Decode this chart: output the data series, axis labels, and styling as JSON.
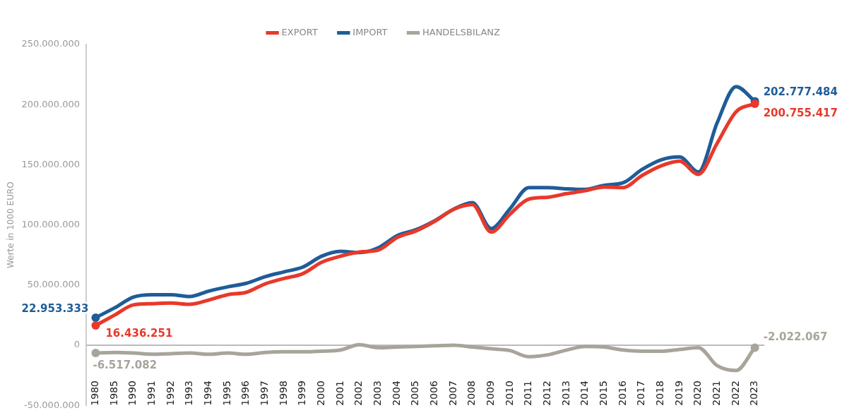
{
  "chart_data": {
    "type": "line",
    "ylabel": "Werte in 1000 EURO",
    "categories": [
      "1980",
      "1985",
      "1990",
      "1991",
      "1992",
      "1993",
      "1994",
      "1995",
      "1996",
      "1997",
      "1998",
      "1999",
      "2000",
      "2001",
      "2002",
      "2003",
      "2004",
      "2005",
      "2006",
      "2007",
      "2008",
      "2009",
      "2010",
      "2011",
      "2012",
      "2013",
      "2014",
      "2015",
      "2016",
      "2017",
      "2018",
      "2019",
      "2020",
      "2021",
      "2022",
      "2023"
    ],
    "series": [
      {
        "name": "EXPORT",
        "color": "#e8392a",
        "values": [
          16436251,
          25000000,
          33500000,
          34500000,
          35000000,
          34000000,
          37500000,
          42000000,
          44000000,
          51000000,
          55500000,
          59500000,
          69000000,
          74000000,
          77500000,
          79000000,
          89500000,
          95000000,
          103000000,
          113000000,
          117000000,
          94000000,
          109000000,
          121500000,
          123000000,
          126000000,
          128500000,
          131500000,
          131000000,
          141000000,
          149000000,
          153000000,
          142000000,
          168000000,
          194000000,
          200755417
        ],
        "value_labels": [
          "16.436.251",
          null,
          null,
          null,
          null,
          null,
          null,
          null,
          null,
          null,
          null,
          null,
          null,
          null,
          null,
          null,
          null,
          null,
          null,
          null,
          null,
          null,
          null,
          null,
          null,
          null,
          null,
          null,
          null,
          null,
          null,
          null,
          null,
          null,
          null,
          "200.755.417"
        ]
      },
      {
        "name": "IMPORT",
        "color": "#1f5c99",
        "values": [
          22953333,
          31000000,
          40000000,
          42000000,
          42000000,
          40500000,
          45000000,
          48500000,
          51500000,
          57000000,
          61000000,
          65000000,
          74000000,
          78000000,
          77000000,
          81000000,
          91000000,
          96000000,
          103500000,
          113000000,
          118500000,
          97000000,
          113500000,
          131000000,
          131000000,
          130000000,
          129500000,
          133000000,
          135000000,
          146000000,
          154000000,
          156500000,
          144000000,
          185000000,
          215000000,
          202777484
        ],
        "value_labels": [
          "22.953.333",
          null,
          null,
          null,
          null,
          null,
          null,
          null,
          null,
          null,
          null,
          null,
          null,
          null,
          null,
          null,
          null,
          null,
          null,
          null,
          null,
          null,
          null,
          null,
          null,
          null,
          null,
          null,
          null,
          null,
          null,
          null,
          null,
          null,
          null,
          "202.777.484"
        ]
      },
      {
        "name": "HANDELSBILANZ",
        "color": "#a8a49a",
        "values": [
          -6517082,
          -6000000,
          -6500000,
          -7500000,
          -7000000,
          -6500000,
          -7500000,
          -6500000,
          -7500000,
          -6000000,
          -5500000,
          -5500000,
          -5000000,
          -4000000,
          500000,
          -2000000,
          -1500000,
          -1000000,
          -500000,
          0,
          -1500000,
          -3000000,
          -4500000,
          -9500000,
          -8000000,
          -4000000,
          -1000000,
          -1500000,
          -4000000,
          -5000000,
          -5000000,
          -3500000,
          -2000000,
          -17000000,
          -21000000,
          -2022067
        ],
        "value_labels": [
          "-6.517.082",
          null,
          null,
          null,
          null,
          null,
          null,
          null,
          null,
          null,
          null,
          null,
          null,
          null,
          null,
          null,
          null,
          null,
          null,
          null,
          null,
          null,
          null,
          null,
          null,
          null,
          null,
          null,
          null,
          null,
          null,
          null,
          null,
          null,
          null,
          "-2.022.067"
        ]
      }
    ],
    "ylim": [
      -50000000,
      250000000
    ],
    "yticks": [
      {
        "value": -50000000,
        "label": "-50.000.000"
      },
      {
        "value": 0,
        "label": "0"
      },
      {
        "value": 50000000,
        "label": "50.000.000"
      },
      {
        "value": 100000000,
        "label": "100.000.000"
      },
      {
        "value": 150000000,
        "label": "150.000.000"
      },
      {
        "value": 200000000,
        "label": "200.000.000"
      },
      {
        "value": 250000000,
        "label": "250.000.000"
      }
    ],
    "ref_lines": [
      {
        "axis": "y",
        "value": 0,
        "color": "#bbbbbb",
        "line_style": "solid"
      }
    ],
    "grid": false,
    "legend": "top",
    "line_style": "solid"
  }
}
